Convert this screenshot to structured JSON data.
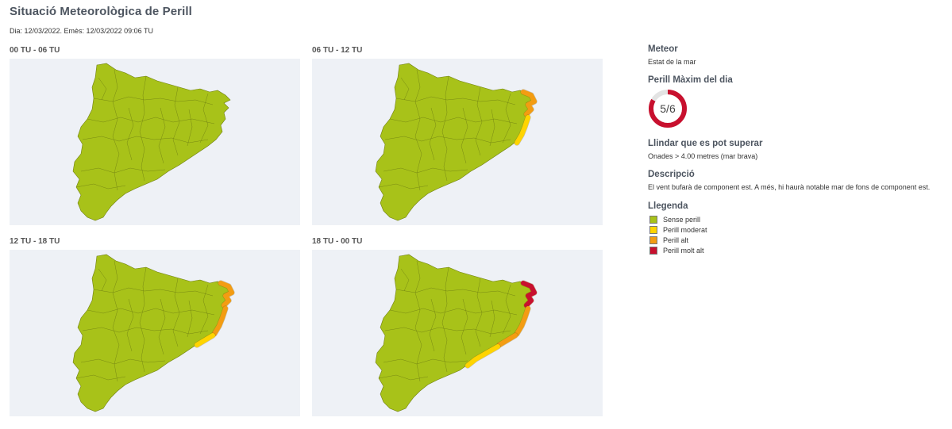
{
  "page": {
    "title": "Situació Meteorològica de Perill",
    "issue_line": "Dia: 12/03/2022. Emès: 12/03/2022 09:06 TU"
  },
  "colors": {
    "background_map": "#eef1f6",
    "sense_perill": "#a8c219",
    "perill_moderat": "#ffd400",
    "perill_alt": "#f39c12",
    "perill_molt_alt": "#c8102e"
  },
  "maps": [
    {
      "label": "00 TU - 06 TU",
      "segments": []
    },
    {
      "label": "06 TU - 12 TU",
      "segments": [
        {
          "zone": "north-coast",
          "level": "perill_alt"
        },
        {
          "zone": "mid-coast",
          "level": "perill_moderat"
        }
      ]
    },
    {
      "label": "12 TU - 18 TU",
      "segments": [
        {
          "zone": "north-coast",
          "level": "perill_alt"
        },
        {
          "zone": "mid-coast",
          "level": "perill_alt"
        },
        {
          "zone": "low-coast",
          "level": "perill_moderat"
        }
      ]
    },
    {
      "label": "18 TU - 00 TU",
      "segments": [
        {
          "zone": "north-coast",
          "level": "perill_molt_alt"
        },
        {
          "zone": "mid-coast",
          "level": "perill_alt"
        },
        {
          "zone": "low-coast",
          "level": "perill_alt"
        },
        {
          "zone": "south-coast",
          "level": "perill_moderat"
        }
      ]
    }
  ],
  "side": {
    "meteor_heading": "Meteor",
    "meteor_value": "Estat de la mar",
    "max_heading": "Perill Màxim del dia",
    "max_value": 5,
    "max_total": 6,
    "max_text": "5/6",
    "threshold_heading": "Llindar que es pot superar",
    "threshold_value": "Onades > 4.00 metres (mar brava)",
    "description_heading": "Descripció",
    "description_value": "El vent bufarà de component est. A més, hi haurà notable mar de fons de component est.",
    "legend_heading": "Llegenda",
    "legend": [
      {
        "label": "Sense perill",
        "color": "#a8c219"
      },
      {
        "label": "Perill moderat",
        "color": "#ffd400"
      },
      {
        "label": "Perill alt",
        "color": "#f39c12"
      },
      {
        "label": "Perill molt alt",
        "color": "#c8102e"
      }
    ]
  }
}
